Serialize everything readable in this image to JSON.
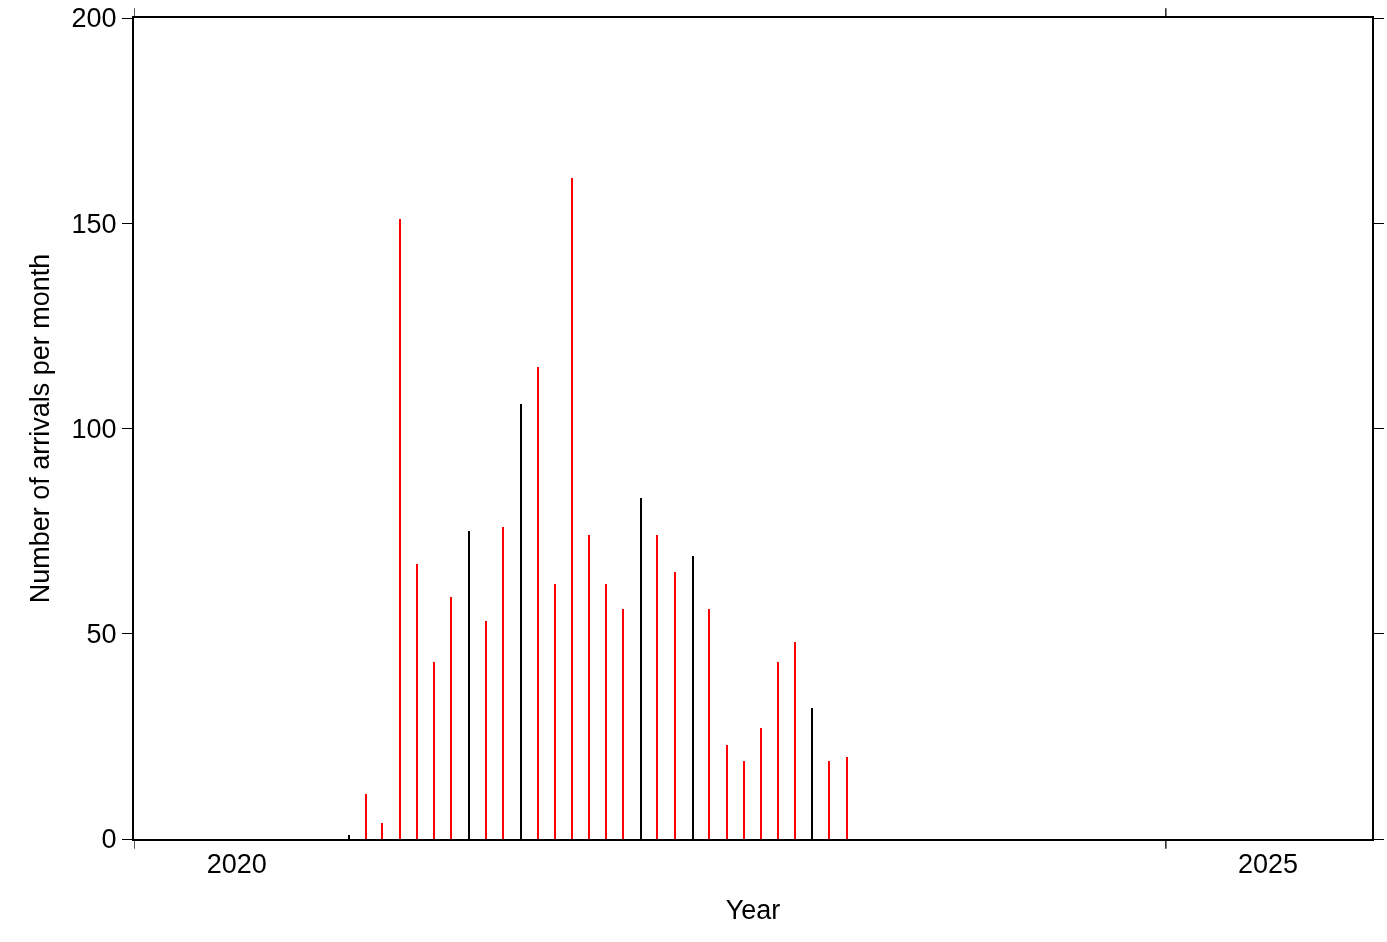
{
  "chart_data": {
    "type": "bar",
    "xlabel": "Year",
    "ylabel": "Number of arrivals per month",
    "x": [
      "2021-01-16",
      "2021-02-15",
      "2021-03-16",
      "2021-04-16",
      "2021-05-16",
      "2021-06-16",
      "2021-07-16",
      "2021-08-16",
      "2021-09-16",
      "2021-10-16",
      "2021-11-16",
      "2021-12-16",
      "2022-01-16",
      "2022-02-15",
      "2022-03-16",
      "2022-04-16",
      "2022-05-16",
      "2022-06-16",
      "2022-07-16",
      "2022-08-16",
      "2022-09-16",
      "2022-10-16",
      "2022-11-16",
      "2022-12-16",
      "2023-01-16",
      "2023-02-15",
      "2023-03-16",
      "2023-04-16",
      "2023-05-16",
      "2023-06-16"
    ],
    "values": [
      1,
      11,
      4,
      151,
      67,
      43,
      59,
      75,
      53,
      76,
      106,
      115,
      62,
      161,
      74,
      62,
      56,
      83,
      74,
      65,
      69,
      56,
      23,
      19,
      27,
      43,
      48,
      32,
      19,
      20
    ],
    "colors": [
      "#000000",
      "#ff0000",
      "#ff0000",
      "#ff0000",
      "#ff0000",
      "#ff0000",
      "#ff0000",
      "#000000",
      "#ff0000",
      "#ff0000",
      "#000000",
      "#ff0000",
      "#ff0000",
      "#ff0000",
      "#ff0000",
      "#ff0000",
      "#ff0000",
      "#000000",
      "#ff0000",
      "#ff0000",
      "#000000",
      "#ff0000",
      "#ff0000",
      "#ff0000",
      "#ff0000",
      "#ff0000",
      "#ff0000",
      "#000000",
      "#ff0000",
      "#ff0000"
    ],
    "xlim": [
      "2020",
      "2026"
    ],
    "xticks": [
      {
        "value": "2020",
        "label": null
      },
      {
        "value": "2020-07",
        "label": "2020"
      },
      {
        "value": "2025",
        "label": null
      },
      {
        "value": "2025-07",
        "label": "2025"
      }
    ],
    "ylim": [
      0,
      200
    ],
    "yticks": [
      0,
      50,
      100,
      150,
      200
    ],
    "grid": false
  }
}
